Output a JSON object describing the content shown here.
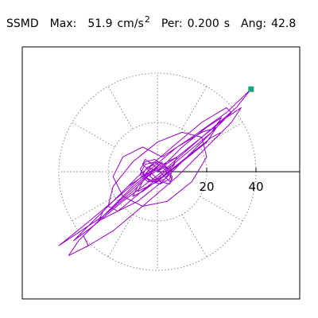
{
  "header": {
    "program": "SSMD",
    "max_label": "Max:",
    "max_value": "51.9",
    "max_unit": "cm/s",
    "max_unit_exp": "2",
    "per_label": "Per:",
    "per_value": "0.200",
    "per_unit": "s",
    "ang_label": "Ang:",
    "ang_value": "42.8"
  },
  "chart_data": {
    "type": "line",
    "title": "",
    "xlabel": "",
    "ylabel": "",
    "xlim": [
      -52,
      52
    ],
    "ylim": [
      -52,
      52
    ],
    "grid": true,
    "grid_rings": [
      20,
      40
    ],
    "grid_spokes_deg": [
      0,
      30,
      60,
      90,
      120,
      150,
      180,
      210,
      240,
      270,
      300,
      330
    ],
    "tick_labels": [
      "20",
      "40"
    ],
    "tick_values": [
      20,
      40
    ],
    "axis_direction_deg": 0,
    "peak_marker": {
      "x": 38.0,
      "y": 33.5
    },
    "colors": {
      "trace": "#9900cc",
      "marker": "#17a67e",
      "grid": "#888888",
      "axes": "#000000"
    },
    "series": [
      {
        "x": [
          0,
          3,
          6,
          5,
          1,
          -4,
          -7,
          -5,
          -1,
          3,
          6,
          5,
          1,
          -3,
          -6,
          -5,
          -2,
          2,
          5,
          6,
          3,
          -1,
          -5,
          -7,
          -4,
          0,
          4,
          7,
          5,
          1,
          -3,
          -6,
          -4,
          0,
          10,
          20,
          26,
          22,
          12,
          2,
          -8,
          -16,
          -20,
          -18,
          -10,
          0,
          10,
          18,
          20,
          14,
          4,
          -6,
          -14,
          -18,
          -14,
          -6,
          2,
          14,
          28,
          38,
          32,
          18,
          2,
          -14,
          -26,
          -34,
          -30,
          -20,
          -8,
          6,
          18,
          28,
          30,
          22,
          10,
          -4,
          -16,
          -24,
          -22,
          -12,
          0,
          -20,
          -30,
          -28,
          -18,
          -6,
          8,
          20,
          26,
          22,
          12,
          2,
          -6,
          -10,
          -8,
          -4,
          8,
          18,
          28,
          34,
          30,
          20,
          8,
          -6,
          -18,
          -28,
          -36,
          -32,
          -22,
          -10,
          2,
          -10,
          -22,
          -34,
          -40,
          -30,
          -18,
          -4,
          8,
          18,
          24,
          20,
          10,
          0,
          -8,
          -6,
          -2,
          4,
          8,
          6,
          2,
          -2,
          -5,
          -3,
          0,
          3,
          5,
          3,
          0,
          -3,
          -2,
          0
        ],
        "y": [
          0,
          2,
          1,
          -3,
          -5,
          -3,
          1,
          4,
          5,
          2,
          -2,
          -5,
          -4,
          0,
          3,
          5,
          3,
          -1,
          -4,
          -3,
          1,
          4,
          3,
          -1,
          -4,
          -4,
          0,
          3,
          2,
          -2,
          -4,
          -1,
          2,
          0,
          10,
          18,
          22,
          16,
          6,
          -4,
          -12,
          -16,
          -14,
          -6,
          4,
          12,
          16,
          14,
          6,
          -4,
          -12,
          -14,
          -10,
          -2,
          6,
          10,
          6,
          14,
          24,
          33.5,
          26,
          14,
          0,
          -12,
          -22,
          -28,
          -24,
          -14,
          -2,
          10,
          20,
          26,
          24,
          16,
          6,
          -6,
          -16,
          -20,
          -16,
          -6,
          2,
          -16,
          -26,
          -30,
          -24,
          -14,
          -2,
          10,
          16,
          14,
          6,
          -2,
          -8,
          -10,
          -6,
          -2,
          6,
          14,
          22,
          26,
          20,
          10,
          -2,
          -14,
          -24,
          -30,
          -34,
          -28,
          -18,
          -6,
          4,
          -8,
          -18,
          -26,
          -30,
          -22,
          -12,
          0,
          10,
          16,
          18,
          12,
          4,
          -4,
          -8,
          -4,
          0,
          4,
          6,
          2,
          -2,
          -4,
          -2,
          2,
          4,
          3,
          0,
          -3,
          -4,
          -2,
          1,
          0
        ]
      }
    ]
  }
}
